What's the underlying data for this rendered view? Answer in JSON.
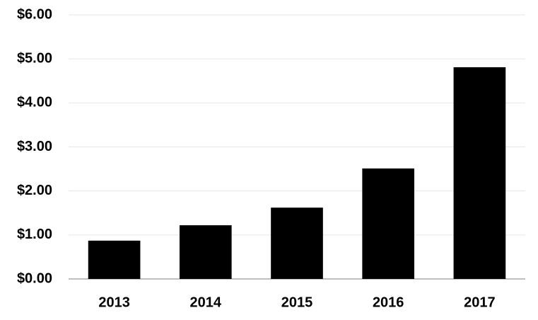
{
  "chart_data": {
    "type": "bar",
    "categories": [
      "2013",
      "2014",
      "2015",
      "2016",
      "2017"
    ],
    "values": [
      0.87,
      1.22,
      1.62,
      2.51,
      4.81
    ],
    "color": "#000000",
    "ylim": [
      0,
      6
    ],
    "yticks": [
      {
        "value": 0,
        "label": "$0.00"
      },
      {
        "value": 1,
        "label": "$1.00"
      },
      {
        "value": 2,
        "label": "$2.00"
      },
      {
        "value": 3,
        "label": "$3.00"
      },
      {
        "value": 4,
        "label": "$4.00"
      },
      {
        "value": 5,
        "label": "$5.00"
      },
      {
        "value": 6,
        "label": "$6.00"
      }
    ],
    "grid": true
  }
}
